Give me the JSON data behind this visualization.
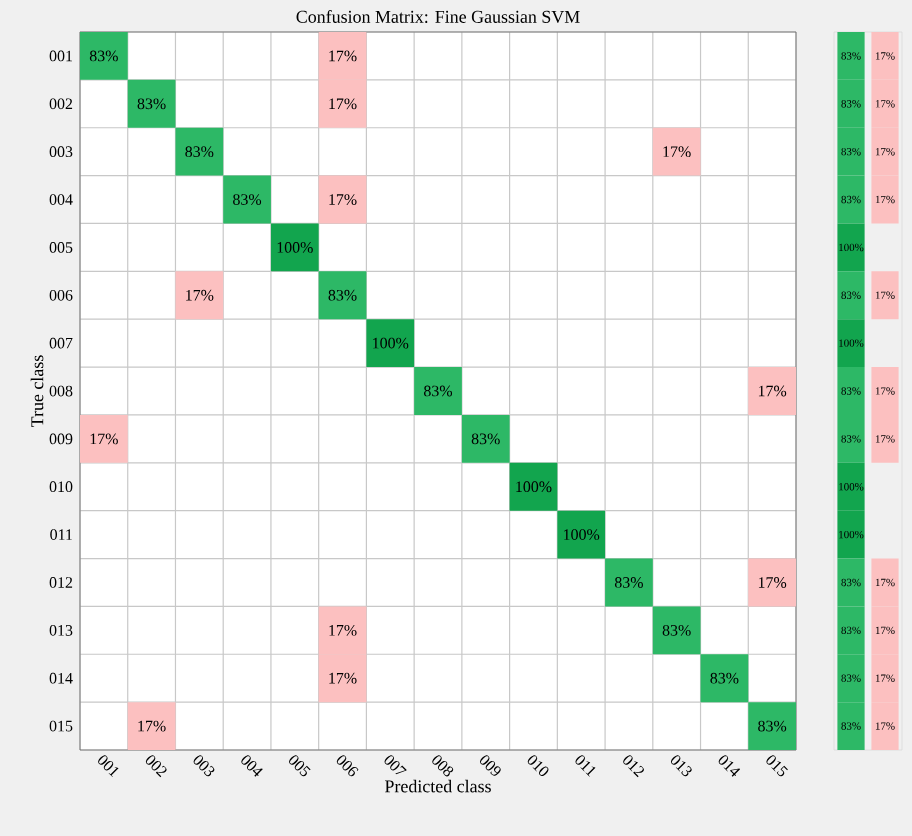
{
  "chart_data": [
    {
      "type": "heatmap",
      "title": "Confusion Matrix: Fine Gaussian SVM",
      "xlabel": "Predicted class",
      "ylabel": "True class",
      "categories": [
        "001",
        "002",
        "003",
        "004",
        "005",
        "006",
        "007",
        "008",
        "009",
        "010",
        "011",
        "012",
        "013",
        "014",
        "015"
      ],
      "y_categories": [
        "001",
        "002",
        "003",
        "004",
        "005",
        "006",
        "007",
        "008",
        "009",
        "010",
        "011",
        "012",
        "013",
        "014",
        "015"
      ],
      "cells": [
        [
          83,
          null,
          null,
          null,
          null,
          17,
          null,
          null,
          null,
          null,
          null,
          null,
          null,
          null,
          null
        ],
        [
          null,
          83,
          null,
          null,
          null,
          17,
          null,
          null,
          null,
          null,
          null,
          null,
          null,
          null,
          null
        ],
        [
          null,
          null,
          83,
          null,
          null,
          null,
          null,
          null,
          null,
          null,
          null,
          null,
          17,
          null,
          null
        ],
        [
          null,
          null,
          null,
          83,
          null,
          17,
          null,
          null,
          null,
          null,
          null,
          null,
          null,
          null,
          null
        ],
        [
          null,
          null,
          null,
          null,
          100,
          null,
          null,
          null,
          null,
          null,
          null,
          null,
          null,
          null,
          null
        ],
        [
          null,
          null,
          17,
          null,
          null,
          83,
          null,
          null,
          null,
          null,
          null,
          null,
          null,
          null,
          null
        ],
        [
          null,
          null,
          null,
          null,
          null,
          null,
          100,
          null,
          null,
          null,
          null,
          null,
          null,
          null,
          null
        ],
        [
          null,
          null,
          null,
          null,
          null,
          null,
          null,
          83,
          null,
          null,
          null,
          null,
          null,
          null,
          17
        ],
        [
          17,
          null,
          null,
          null,
          null,
          null,
          null,
          null,
          83,
          null,
          null,
          null,
          null,
          null,
          null
        ],
        [
          null,
          null,
          null,
          null,
          null,
          null,
          null,
          null,
          null,
          100,
          null,
          null,
          null,
          null,
          null
        ],
        [
          null,
          null,
          null,
          null,
          null,
          null,
          null,
          null,
          null,
          null,
          100,
          null,
          null,
          null,
          null
        ],
        [
          null,
          null,
          null,
          null,
          null,
          null,
          null,
          null,
          null,
          null,
          null,
          83,
          null,
          null,
          17
        ],
        [
          null,
          null,
          null,
          null,
          null,
          17,
          null,
          null,
          null,
          null,
          null,
          null,
          83,
          null,
          null
        ],
        [
          null,
          null,
          null,
          null,
          null,
          17,
          null,
          null,
          null,
          null,
          null,
          null,
          null,
          83,
          null
        ],
        [
          null,
          17,
          null,
          null,
          null,
          null,
          null,
          null,
          null,
          null,
          null,
          null,
          null,
          null,
          83
        ]
      ],
      "cell_labels": [
        [
          "83%",
          null,
          null,
          null,
          null,
          "17%",
          null,
          null,
          null,
          null,
          null,
          null,
          null,
          null,
          null
        ],
        [
          null,
          "83%",
          null,
          null,
          null,
          "17%",
          null,
          null,
          null,
          null,
          null,
          null,
          null,
          null,
          null
        ],
        [
          null,
          null,
          "83%",
          null,
          null,
          null,
          null,
          null,
          null,
          null,
          null,
          null,
          "17%",
          null,
          null
        ],
        [
          null,
          null,
          null,
          "83%",
          null,
          "17%",
          null,
          null,
          null,
          null,
          null,
          null,
          null,
          null,
          null
        ],
        [
          null,
          null,
          null,
          null,
          "100%",
          null,
          null,
          null,
          null,
          null,
          null,
          null,
          null,
          null,
          null
        ],
        [
          null,
          null,
          "17%",
          null,
          null,
          "83%",
          null,
          null,
          null,
          null,
          null,
          null,
          null,
          null,
          null
        ],
        [
          null,
          null,
          null,
          null,
          null,
          null,
          "100%",
          null,
          null,
          null,
          null,
          null,
          null,
          null,
          null
        ],
        [
          null,
          null,
          null,
          null,
          null,
          null,
          null,
          "83%",
          null,
          null,
          null,
          null,
          null,
          null,
          "17%"
        ],
        [
          "17%",
          null,
          null,
          null,
          null,
          null,
          null,
          null,
          "83%",
          null,
          null,
          null,
          null,
          null,
          null
        ],
        [
          null,
          null,
          null,
          null,
          null,
          null,
          null,
          null,
          null,
          "100%",
          null,
          null,
          null,
          null,
          null
        ],
        [
          null,
          null,
          null,
          null,
          null,
          null,
          null,
          null,
          null,
          null,
          "100%",
          null,
          null,
          null,
          null
        ],
        [
          null,
          null,
          null,
          null,
          null,
          null,
          null,
          null,
          null,
          null,
          null,
          "83%",
          null,
          null,
          "17%"
        ],
        [
          null,
          null,
          null,
          null,
          null,
          "17%",
          null,
          null,
          null,
          null,
          null,
          null,
          "83%",
          null,
          null
        ],
        [
          null,
          null,
          null,
          null,
          null,
          "17%",
          null,
          null,
          null,
          null,
          null,
          null,
          null,
          "83%",
          null
        ],
        [
          null,
          "17%",
          null,
          null,
          null,
          null,
          null,
          null,
          null,
          null,
          null,
          null,
          null,
          null,
          "83%"
        ]
      ]
    },
    {
      "type": "heatmap",
      "tick_labels": false,
      "categories": [
        null,
        null
      ],
      "y_categories": [
        null,
        null,
        null,
        null,
        null,
        null,
        null,
        null,
        null,
        null,
        null,
        null,
        null,
        null,
        null
      ],
      "cells": [
        [
          83,
          17
        ],
        [
          83,
          17
        ],
        [
          83,
          17
        ],
        [
          83,
          17
        ],
        [
          100,
          null
        ],
        [
          83,
          17
        ],
        [
          100,
          null
        ],
        [
          83,
          17
        ],
        [
          83,
          17
        ],
        [
          100,
          null
        ],
        [
          100,
          null
        ],
        [
          83,
          17
        ],
        [
          83,
          17
        ],
        [
          83,
          17
        ],
        [
          83,
          17
        ]
      ],
      "cell_labels": [
        [
          "83%",
          "17%"
        ],
        [
          "83%",
          "17%"
        ],
        [
          "83%",
          "17%"
        ],
        [
          "83%",
          "17%"
        ],
        [
          "100%",
          null
        ],
        [
          "83%",
          "17%"
        ],
        [
          "100%",
          null
        ],
        [
          "83%",
          "17%"
        ],
        [
          "83%",
          "17%"
        ],
        [
          "100%",
          null
        ],
        [
          "100%",
          null
        ],
        [
          "83%",
          "17%"
        ],
        [
          "83%",
          "17%"
        ],
        [
          "83%",
          "17%"
        ],
        [
          "83%",
          "17%"
        ]
      ]
    }
  ]
}
